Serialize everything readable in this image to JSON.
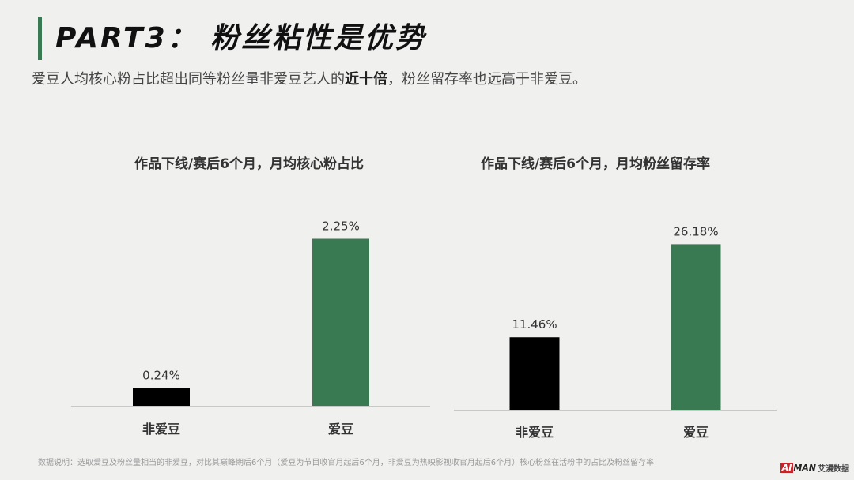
{
  "header": {
    "title": "PART3： 粉丝粘性是优势",
    "subtitle_pre": "爱豆人均核心粉占比超出同等粉丝量非爱豆艺人的",
    "subtitle_bold": "近十倍",
    "subtitle_post": "，粉丝留存率也远高于非爱豆。",
    "accent_color": "#3a7a52"
  },
  "chart_data": [
    {
      "type": "bar",
      "title": "作品下线/赛后6个月，月均核心粉占比",
      "categories": [
        "非爱豆",
        "爱豆"
      ],
      "values": [
        0.24,
        2.25
      ],
      "value_labels": [
        "0.24%",
        "2.25%"
      ],
      "colors": [
        "#000000",
        "#3a7a52"
      ],
      "ylim": [
        0,
        2.5
      ],
      "grid": false,
      "legend": "none"
    },
    {
      "type": "bar",
      "title": "作品下线/赛后6个月，月均粉丝留存率",
      "categories": [
        "非爱豆",
        "爱豆"
      ],
      "values": [
        11.46,
        26.18
      ],
      "value_labels": [
        "11.46%",
        "26.18%"
      ],
      "colors": [
        "#000000",
        "#3a7a52"
      ],
      "ylim": [
        0,
        29.1
      ],
      "grid": false,
      "legend": "none"
    }
  ],
  "footer": {
    "note": "数据说明：选取爱豆及粉丝量相当的非爱豆，对比其巅峰期后6个月（爱豆为节目收官月起后6个月，非爱豆为热映影视收官月起后6个月）核心粉丝在活粉中的占比及粉丝留存率",
    "logo_ai": "AI",
    "logo_man": "MAN",
    "logo_cn": "艾漫数据"
  }
}
